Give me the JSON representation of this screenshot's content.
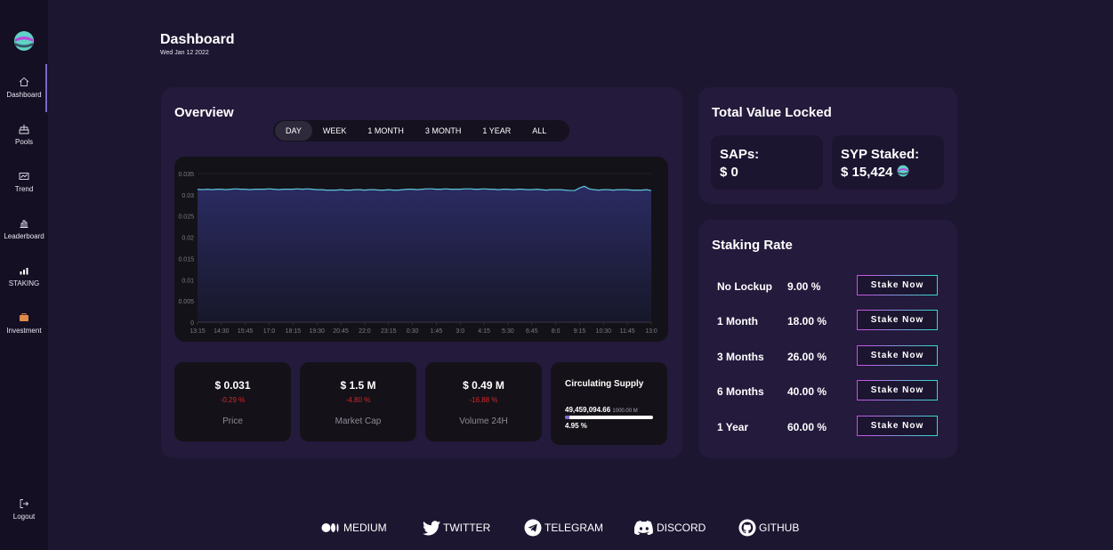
{
  "sidebar": {
    "items": [
      {
        "label": "Dashboard",
        "icon": "home-icon"
      },
      {
        "label": "Pools",
        "icon": "pools-icon"
      },
      {
        "label": "Trend",
        "icon": "trend-icon"
      },
      {
        "label": "Leaderboard",
        "icon": "leaderboard-icon"
      },
      {
        "label": "STAKING",
        "icon": "staking-icon"
      },
      {
        "label": "Investment",
        "icon": "investment-icon"
      }
    ],
    "logout": "Logout"
  },
  "header": {
    "title": "Dashboard",
    "date": "Wed Jan 12 2022"
  },
  "overview": {
    "title": "Overview",
    "tabs": [
      "DAY",
      "WEEK",
      "1 MONTH",
      "3 MONTH",
      "1 YEAR",
      "ALL"
    ],
    "active_tab": "DAY",
    "stats": [
      {
        "value": "$ 0.031",
        "change": "-0.29 %",
        "label": "Price"
      },
      {
        "value": "$ 1.5 M",
        "change": "-4.80 %",
        "label": "Market Cap"
      },
      {
        "value": "$ 0.49 M",
        "change": "-16.88 %",
        "label": "Volume 24H"
      }
    ],
    "supply": {
      "title": "Circulating Supply",
      "amount": "49,459,094.66",
      "max": "1000.00 M",
      "percent": "4.95 %",
      "fraction": 0.0495
    }
  },
  "chart_data": {
    "type": "area",
    "x": [
      "13:15",
      "13:30",
      "13:45",
      "14:00",
      "14:15",
      "14:30",
      "14:45",
      "15:00",
      "15:15",
      "15:30",
      "15:45",
      "16:00",
      "16:15",
      "16:30",
      "16:45",
      "17:00",
      "17:15",
      "17:30",
      "17:45",
      "18:00",
      "18:15",
      "18:30",
      "18:45",
      "19:00",
      "19:15",
      "19:30",
      "19:45",
      "20:00",
      "20:15",
      "20:30",
      "20:45",
      "21:00",
      "21:15",
      "21:30",
      "21:45",
      "22:00",
      "22:15",
      "22:30",
      "22:45",
      "23:00",
      "23:15",
      "23:30",
      "23:45",
      "0:00",
      "0:15",
      "0:30",
      "0:45",
      "1:00",
      "1:15",
      "1:30",
      "1:45",
      "2:00",
      "2:15",
      "2:30",
      "2:45",
      "3:00",
      "3:15",
      "3:30",
      "3:45",
      "4:00",
      "4:15",
      "4:30",
      "4:45",
      "5:00",
      "5:15",
      "5:30",
      "5:45",
      "6:00",
      "6:15",
      "6:30",
      "6:45",
      "7:00",
      "7:15",
      "7:30",
      "7:45",
      "8:00",
      "8:15",
      "8:30",
      "8:45",
      "9:00",
      "9:15",
      "9:30",
      "9:45",
      "10:00",
      "10:15",
      "10:30",
      "10:45",
      "11:00",
      "11:15",
      "11:30",
      "11:45",
      "12:00",
      "12:15",
      "12:30",
      "12:45",
      "13:00"
    ],
    "values": [
      0.0313,
      0.0312,
      0.0313,
      0.0312,
      0.0313,
      0.0313,
      0.0312,
      0.0313,
      0.0314,
      0.0313,
      0.0313,
      0.0312,
      0.0313,
      0.0313,
      0.0313,
      0.0314,
      0.0313,
      0.0312,
      0.0313,
      0.0313,
      0.0313,
      0.0314,
      0.0313,
      0.0314,
      0.0313,
      0.0312,
      0.0312,
      0.0311,
      0.0311,
      0.0311,
      0.0312,
      0.0311,
      0.0311,
      0.0312,
      0.0312,
      0.0311,
      0.0312,
      0.0312,
      0.0311,
      0.0311,
      0.0312,
      0.0311,
      0.0311,
      0.0312,
      0.0313,
      0.0313,
      0.0312,
      0.0313,
      0.0314,
      0.0314,
      0.0313,
      0.0313,
      0.0314,
      0.0313,
      0.0313,
      0.0313,
      0.0314,
      0.0314,
      0.0313,
      0.0313,
      0.0314,
      0.0313,
      0.0313,
      0.0312,
      0.0313,
      0.0313,
      0.0312,
      0.0313,
      0.0313,
      0.0312,
      0.0312,
      0.0313,
      0.0312,
      0.0311,
      0.0312,
      0.0312,
      0.0312,
      0.0311,
      0.031,
      0.031,
      0.0316,
      0.032,
      0.0314,
      0.0312,
      0.0311,
      0.0312,
      0.0312,
      0.0311,
      0.0312,
      0.0312,
      0.0312,
      0.0311,
      0.0311,
      0.0311,
      0.0312,
      0.031
    ],
    "xticks": [
      "13:15",
      "14:30",
      "15:45",
      "17:0",
      "18:15",
      "19:30",
      "20:45",
      "22:0",
      "23:15",
      "0:30",
      "1:45",
      "3:0",
      "4:15",
      "5:30",
      "6:45",
      "8:0",
      "9:15",
      "10:30",
      "11:45",
      "13:0"
    ],
    "yticks": [
      0,
      0.005,
      0.01,
      0.015,
      0.02,
      0.025,
      0.03,
      0.035
    ],
    "ylim": [
      0,
      0.035
    ],
    "grid": true,
    "line_color": "#5ec8dc",
    "fill_color": "#2a2a5a"
  },
  "tvl": {
    "title": "Total Value Locked",
    "saps_label": "SAPs:",
    "saps_value": "$ 0",
    "syp_label": "SYP Staked:",
    "syp_value": "$ 15,424"
  },
  "staking": {
    "title": "Staking Rate",
    "button_label": "Stake Now",
    "rows": [
      {
        "term": "No Lockup",
        "rate": "9.00 %"
      },
      {
        "term": "1 Month",
        "rate": "18.00 %"
      },
      {
        "term": "3 Months",
        "rate": "26.00 %"
      },
      {
        "term": "6 Months",
        "rate": "40.00 %"
      },
      {
        "term": "1 Year",
        "rate": "60.00 %"
      }
    ]
  },
  "footer": {
    "links": [
      {
        "label": "MEDIUM",
        "icon": "medium-icon"
      },
      {
        "label": "TWITTER",
        "icon": "twitter-icon"
      },
      {
        "label": "TELEGRAM",
        "icon": "telegram-icon"
      },
      {
        "label": "DISCORD",
        "icon": "discord-icon"
      },
      {
        "label": "GITHUB",
        "icon": "github-icon"
      }
    ]
  },
  "colors": {
    "background": "#1d1631",
    "sidebar": "#150f23",
    "card": "#241a3c",
    "accent": "#7b6bc9",
    "negative": "#d8232a",
    "button_gradient_start": "#d24ae6",
    "button_gradient_end": "#2ee0c9"
  }
}
